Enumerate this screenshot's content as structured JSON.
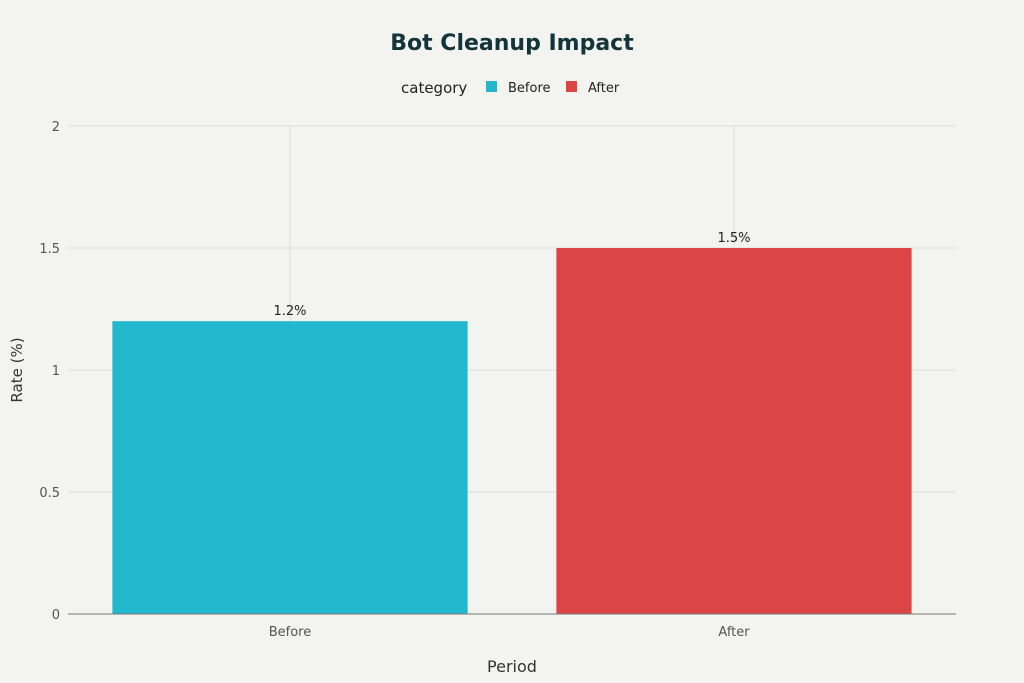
{
  "chart_data": {
    "type": "bar",
    "title": "Bot Cleanup Impact",
    "xlabel": "Period",
    "ylabel": "Rate (%)",
    "categories": [
      "Before",
      "After"
    ],
    "values": [
      1.2,
      1.5
    ],
    "data_labels": [
      "1.2%",
      "1.5%"
    ],
    "colors": [
      "#21b7cc",
      "#db4546"
    ],
    "ylim": [
      0,
      2
    ],
    "y_ticks": [
      0,
      0.5,
      1,
      1.5,
      2
    ],
    "y_tick_labels": [
      "0",
      "0.5",
      "1",
      "1.5",
      "2"
    ],
    "legend": {
      "title": "category",
      "placement": "top-center",
      "entries": [
        {
          "label": "Before",
          "color": "#21b7cc"
        },
        {
          "label": "After",
          "color": "#db4546"
        }
      ]
    },
    "grid": true
  }
}
